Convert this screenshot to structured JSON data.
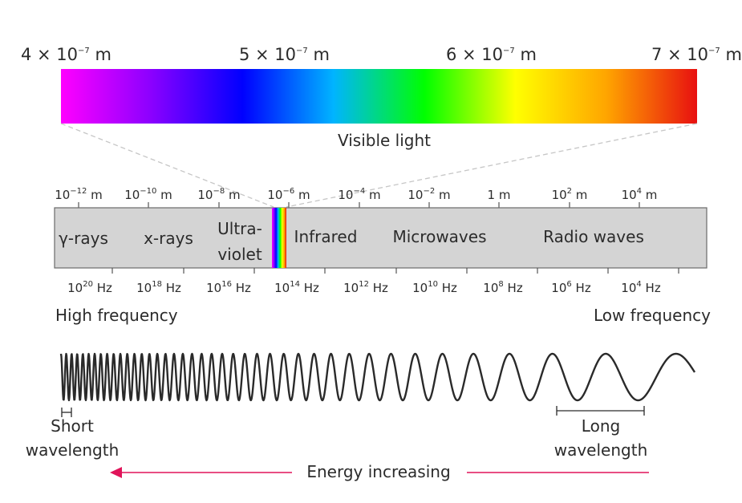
{
  "visible_light": {
    "wavelength_labels": [
      {
        "base": "4 × 10",
        "exp": "−7",
        "unit": " m"
      },
      {
        "base": "5 × 10",
        "exp": "−7",
        "unit": " m"
      },
      {
        "base": "6 × 10",
        "exp": "−7",
        "unit": " m"
      },
      {
        "base": "7 × 10",
        "exp": "−7",
        "unit": " m"
      }
    ],
    "label": "Visible light",
    "gradient_colors": [
      "#ff00ff",
      "#8a00ff",
      "#0000ff",
      "#00b4ff",
      "#00ff00",
      "#ffff00",
      "#ffa500",
      "#e81010"
    ]
  },
  "spectrum": {
    "wavelength_ticks": [
      {
        "base": "10",
        "exp": "−12",
        "unit": " m"
      },
      {
        "base": "10",
        "exp": "−10",
        "unit": " m"
      },
      {
        "base": "10",
        "exp": "−8",
        "unit": " m"
      },
      {
        "base": "10",
        "exp": "−6",
        "unit": " m"
      },
      {
        "base": "10",
        "exp": "−4",
        "unit": " m"
      },
      {
        "base": "10",
        "exp": "−2",
        "unit": " m"
      },
      {
        "base": "1 m",
        "exp": "",
        "unit": ""
      },
      {
        "base": "10",
        "exp": "2",
        "unit": " m"
      },
      {
        "base": "10",
        "exp": "4",
        "unit": " m"
      }
    ],
    "frequency_ticks": [
      {
        "base": "10",
        "exp": "20",
        "unit": " Hz"
      },
      {
        "base": "10",
        "exp": "18",
        "unit": " Hz"
      },
      {
        "base": "10",
        "exp": "16",
        "unit": " Hz"
      },
      {
        "base": "10",
        "exp": "14",
        "unit": " Hz"
      },
      {
        "base": "10",
        "exp": "12",
        "unit": " Hz"
      },
      {
        "base": "10",
        "exp": "10",
        "unit": " Hz"
      },
      {
        "base": "10",
        "exp": "8",
        "unit": " Hz"
      },
      {
        "base": "10",
        "exp": "6",
        "unit": " Hz"
      },
      {
        "base": "10",
        "exp": "4",
        "unit": " Hz"
      }
    ],
    "regions": {
      "gamma": "γ-rays",
      "xrays": "x-rays",
      "uv_line1": "Ultra-",
      "uv_line2": "violet",
      "infrared": "Infrared",
      "microwaves": "Microwaves",
      "radio": "Radio waves"
    },
    "bar_color": "#d4d4d4"
  },
  "frequency": {
    "high": "High frequency",
    "low": "Low frequency"
  },
  "wavelength": {
    "short_line1": "Short",
    "short_line2": "wavelength",
    "long_line1": "Long",
    "long_line2": "wavelength"
  },
  "energy": {
    "label": "Energy increasing",
    "arrow_color": "#e0145a"
  }
}
